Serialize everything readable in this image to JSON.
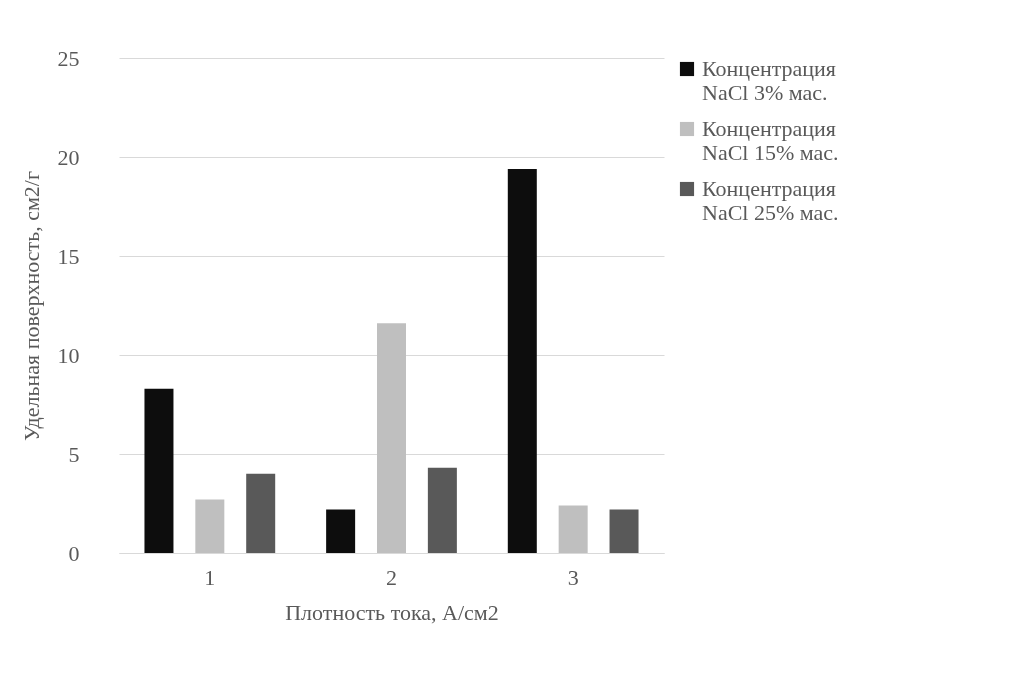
{
  "chart_data": {
    "type": "bar",
    "xlabel": "Плотность тока, А/см2",
    "ylabel": "Удельная поверхность, см2/г",
    "categories": [
      "1",
      "2",
      "3"
    ],
    "series": [
      {
        "name": "Концентрация NaCl 3% мас.",
        "color": "#0d0d0d",
        "values": [
          8.3,
          2.2,
          19.4
        ]
      },
      {
        "name": "Концентрация NaCl 15% мас.",
        "color": "#bfbfbf",
        "values": [
          2.7,
          11.6,
          2.4
        ]
      },
      {
        "name": "Концентрация NaCl 25% мас.",
        "color": "#595959",
        "values": [
          4.0,
          4.3,
          2.2
        ]
      }
    ],
    "ylim": [
      0,
      25
    ],
    "yticks": [
      0,
      5,
      10,
      15,
      20,
      25
    ],
    "grid": "y",
    "legend": "right"
  }
}
